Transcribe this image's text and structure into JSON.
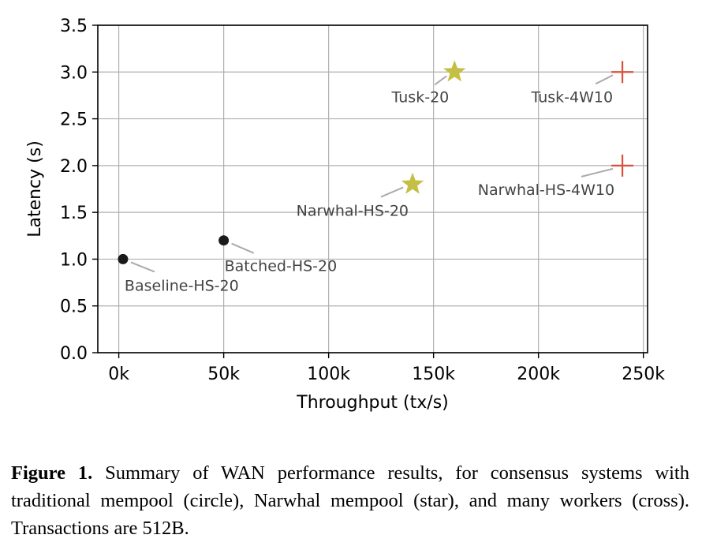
{
  "chart_data": {
    "type": "scatter",
    "xlabel": "Throughput (tx/s)",
    "ylabel": "Latency (s)",
    "xlim": [
      -10000,
      252000
    ],
    "ylim": [
      0,
      3.5
    ],
    "xticks": [
      0,
      50000,
      100000,
      150000,
      200000,
      250000
    ],
    "xtick_labels": [
      "0k",
      "50k",
      "100k",
      "150k",
      "200k",
      "250k"
    ],
    "yticks": [
      0,
      0.5,
      1.0,
      1.5,
      2.0,
      2.5,
      3.0,
      3.5
    ],
    "ytick_labels": [
      "0.0",
      "0.5",
      "1.0",
      "1.5",
      "2.0",
      "2.5",
      "3.0",
      "3.5"
    ],
    "grid": true,
    "points": [
      {
        "label": "Baseline-HS-20",
        "x": 2000,
        "y": 1.0,
        "marker": "circle",
        "color": "#1a1a1a"
      },
      {
        "label": "Batched-HS-20",
        "x": 50000,
        "y": 1.2,
        "marker": "circle",
        "color": "#1a1a1a"
      },
      {
        "label": "Narwhal-HS-20",
        "x": 140000,
        "y": 1.8,
        "marker": "star",
        "color": "#c5bf45"
      },
      {
        "label": "Tusk-20",
        "x": 160000,
        "y": 3.0,
        "marker": "star",
        "color": "#c5bf45"
      },
      {
        "label": "Narwhal-HS-4W10",
        "x": 240000,
        "y": 2.0,
        "marker": "cross",
        "color": "#d9503c"
      },
      {
        "label": "Tusk-4W10",
        "x": 240000,
        "y": 3.0,
        "marker": "cross",
        "color": "#d9503c"
      }
    ]
  },
  "caption": {
    "lead": "Figure 1.",
    "text": " Summary of WAN performance results, for consensus systems with traditional mempool (circle), Narwhal mempool (star), and many workers (cross). Transactions are 512B."
  }
}
